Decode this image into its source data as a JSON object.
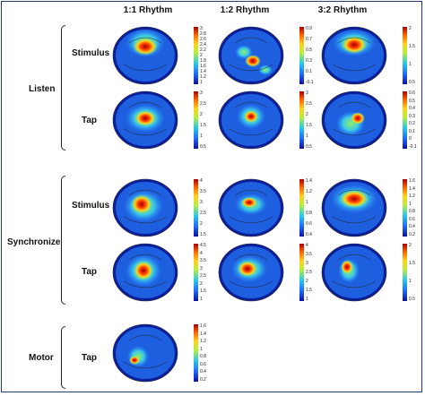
{
  "columns": [
    "1:1 Rhythm",
    "1:2 Rhythm",
    "3:2 Rhythm"
  ],
  "groups": [
    {
      "label": "Listen",
      "rows": [
        "Stimulus",
        "Tap"
      ]
    },
    {
      "label": "Synchronize",
      "rows": [
        "Stimulus",
        "Tap"
      ]
    },
    {
      "label": "Motor",
      "rows": [
        "Tap"
      ]
    }
  ],
  "colorbars": [
    {
      "ticks": [
        "3",
        "2.8",
        "2.6",
        "2.4",
        "2.2",
        "2",
        "1.8",
        "1.6",
        "1.4",
        "1.2",
        "1"
      ]
    },
    {
      "ticks": [
        "0.9",
        "0.7",
        "0.5",
        "0.3",
        "0.1",
        "-0.1"
      ]
    },
    {
      "ticks": [
        "2",
        "1.5",
        "1",
        "0.5"
      ]
    },
    {
      "ticks": [
        "3",
        "2.5",
        "2",
        "1.5",
        "1",
        "0.5"
      ]
    },
    {
      "ticks": [
        "3",
        "2.5",
        "2",
        "1.5",
        "1",
        "0.5"
      ]
    },
    {
      "ticks": [
        "0.6",
        "0.5",
        "0.4",
        "0.3",
        "0.2",
        "0.1",
        "0",
        "-0.1"
      ]
    },
    {
      "ticks": [
        "4",
        "3.5",
        "3",
        "2.5",
        "2",
        "1.5"
      ]
    },
    {
      "ticks": [
        "1.4",
        "1.2",
        "1",
        "0.8",
        "0.6",
        "0.4"
      ]
    },
    {
      "ticks": [
        "1.6",
        "1.4",
        "1.2",
        "1",
        "0.8",
        "0.6",
        "0.4",
        "0.2"
      ]
    },
    {
      "ticks": [
        "4.5",
        "4",
        "3.5",
        "3",
        "2.5",
        "2",
        "1.5",
        "1"
      ]
    },
    {
      "ticks": [
        "4",
        "3.5",
        "3",
        "2.5",
        "2",
        "1.5",
        "1"
      ]
    },
    {
      "ticks": [
        "2",
        "1.5",
        "1",
        "0.5"
      ]
    },
    {
      "ticks": [
        "1.6",
        "1.4",
        "1.2",
        "1",
        "0.8",
        "0.6",
        "0.4",
        "0.2"
      ]
    }
  ],
  "colors": {
    "frame": "#1f3c7a",
    "low": "#1010a0",
    "mid": "#25c9e8",
    "high": "#b00000"
  }
}
